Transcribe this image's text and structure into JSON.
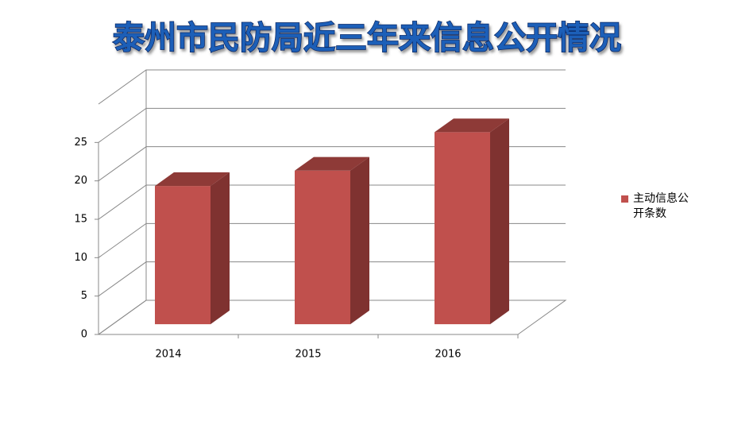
{
  "chart_data": {
    "type": "bar3d",
    "title": "泰州市民防局近三年来信息公开情况",
    "categories": [
      "2014",
      "2015",
      "2016"
    ],
    "series": [
      {
        "name": "主动信息公开条数",
        "color": "#c0504d",
        "values": [
          18,
          20,
          25
        ]
      }
    ],
    "ylim": [
      0,
      30
    ],
    "yticks": [
      0,
      5,
      10,
      15,
      20,
      25
    ],
    "grid": true,
    "legend": "right"
  }
}
